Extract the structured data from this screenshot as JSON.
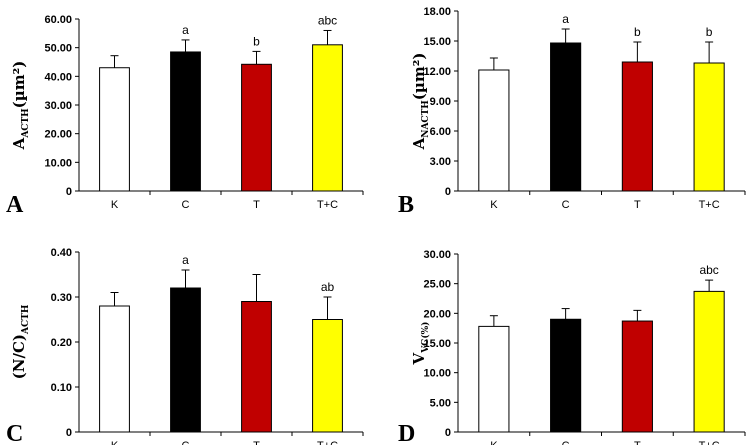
{
  "chart_data": [
    {
      "type": "bar",
      "panel": "A",
      "ylabel": {
        "main": "A",
        "sub": "ACTH",
        "unit": "(µm²)"
      },
      "categories": [
        "K",
        "C",
        "T",
        "T+C"
      ],
      "values": [
        43.0,
        48.5,
        44.2,
        51.0
      ],
      "errors": [
        4.2,
        4.2,
        4.5,
        5.0
      ],
      "annotations": [
        "",
        "a",
        "b",
        "abc"
      ],
      "ylim": [
        0,
        60
      ],
      "yticks": [
        "0",
        "10.00",
        "20.00",
        "30.00",
        "40.00",
        "50.00",
        "60.00"
      ],
      "colors": [
        "#ffffff",
        "#000000",
        "#c00000",
        "#ffff00"
      ]
    },
    {
      "type": "bar",
      "panel": "B",
      "ylabel": {
        "main": "A",
        "sub": "NACTH",
        "unit": "(µm²)"
      },
      "categories": [
        "K",
        "C",
        "T",
        "T+C"
      ],
      "values": [
        12.1,
        14.8,
        12.9,
        12.8
      ],
      "errors": [
        1.2,
        1.4,
        2.0,
        2.1
      ],
      "annotations": [
        "",
        "a",
        "b",
        "b"
      ],
      "ylim": [
        0,
        18
      ],
      "yticks": [
        "0",
        "3.00",
        "6.00",
        "9.00",
        "12.00",
        "15.00",
        "18.00"
      ],
      "colors": [
        "#ffffff",
        "#000000",
        "#c00000",
        "#ffff00"
      ]
    },
    {
      "type": "bar",
      "panel": "C",
      "ylabel": {
        "main": "(N/C)",
        "sub": "ACTH",
        "unit": ""
      },
      "categories": [
        "K",
        "C",
        "T",
        "T+C"
      ],
      "values": [
        0.28,
        0.32,
        0.29,
        0.25
      ],
      "errors": [
        0.03,
        0.04,
        0.06,
        0.05
      ],
      "annotations": [
        "",
        "a",
        "",
        "ab"
      ],
      "ylim": [
        0,
        0.4
      ],
      "yticks": [
        "0",
        "0.10",
        "0.20",
        "0.30",
        "0.40"
      ],
      "colors": [
        "#ffffff",
        "#000000",
        "#c00000",
        "#ffff00"
      ]
    },
    {
      "type": "bar",
      "panel": "D",
      "ylabel": {
        "main": "V",
        "sub": "VC(%)",
        "unit": ""
      },
      "categories": [
        "K",
        "C",
        "T",
        "T+C"
      ],
      "values": [
        17.8,
        19.0,
        18.7,
        23.7
      ],
      "errors": [
        1.8,
        1.8,
        1.8,
        1.9
      ],
      "annotations": [
        "",
        "",
        "",
        "abc"
      ],
      "ylim": [
        0,
        30
      ],
      "yticks": [
        "0",
        "5.00",
        "10.00",
        "15.00",
        "20.00",
        "25.00",
        "30.00"
      ],
      "colors": [
        "#ffffff",
        "#000000",
        "#c00000",
        "#ffff00"
      ]
    }
  ]
}
